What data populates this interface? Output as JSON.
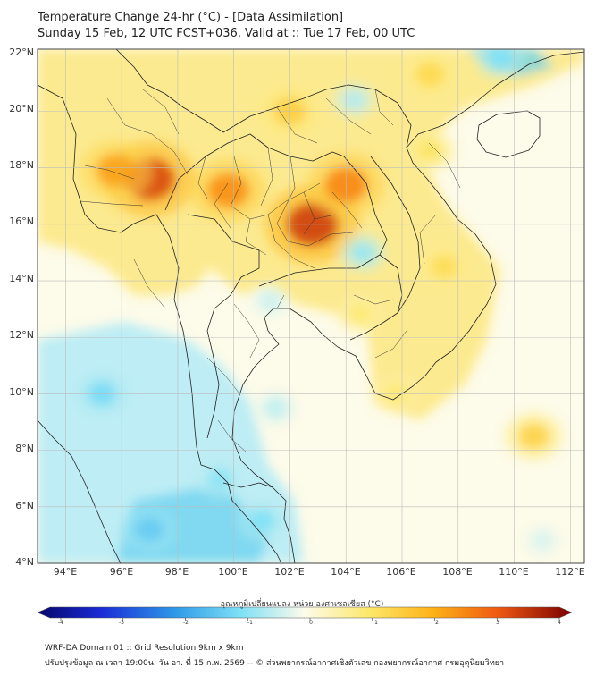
{
  "header": {
    "title_line1": "Temperature Change 24-hr (°C) - [Data Assimilation]",
    "title_line2": "Sunday 15 Feb, 12 UTC FCST+036, Valid at :: Tue 17 Feb, 00 UTC"
  },
  "map": {
    "lat_labels": [
      "22°N",
      "20°N",
      "18°N",
      "16°N",
      "14°N",
      "12°N",
      "10°N",
      "8°N",
      "6°N",
      "4°N"
    ],
    "lon_labels": [
      "94°E",
      "96°E",
      "98°E",
      "100°E",
      "102°E",
      "104°E",
      "106°E",
      "108°E",
      "110°E",
      "112°E"
    ],
    "lat_range": [
      4,
      22.2
    ],
    "lon_range": [
      93,
      112.5
    ],
    "anomalies": [
      {
        "name": "myanmar-warm-core",
        "lon": 97.0,
        "lat": 17.6,
        "value": 3.2
      },
      {
        "name": "myanmar-warm-west",
        "lon": 95.8,
        "lat": 17.9,
        "value": 2.2
      },
      {
        "name": "thai-north-warm",
        "lon": 99.8,
        "lat": 17.2,
        "value": 2.4
      },
      {
        "name": "isan-warm-core",
        "lon": 102.8,
        "lat": 16.0,
        "value": 3.3
      },
      {
        "name": "laos-warm",
        "lon": 104.0,
        "lat": 17.4,
        "value": 2.5
      },
      {
        "name": "north-vietnam-warm",
        "lon": 102.0,
        "lat": 20.0,
        "value": 1.5
      },
      {
        "name": "south-china-warm",
        "lon": 107.0,
        "lat": 21.3,
        "value": 1.3
      },
      {
        "name": "vietnam-coast-warm",
        "lon": 107.5,
        "lat": 14.5,
        "value": 1.2
      },
      {
        "name": "gulf-tonkin-warm",
        "lon": 107.0,
        "lat": 18.6,
        "value": 1.1
      },
      {
        "name": "sea-warm-spot",
        "lon": 110.7,
        "lat": 8.5,
        "value": 1.4
      },
      {
        "name": "mekong-delta-warm",
        "lon": 105.8,
        "lat": 10.0,
        "value": 0.9
      },
      {
        "name": "cambodia-warm",
        "lon": 104.5,
        "lat": 12.8,
        "value": 0.9
      },
      {
        "name": "andaman-cool",
        "lon": 95.3,
        "lat": 10.0,
        "value": -1.1
      },
      {
        "name": "malaya-cool",
        "lon": 99.5,
        "lat": 7.0,
        "value": -0.9
      },
      {
        "name": "sumatra-cool",
        "lon": 97.0,
        "lat": 5.2,
        "value": -1.3
      },
      {
        "name": "malay-coast-cool",
        "lon": 101.0,
        "lat": 5.5,
        "value": -1.0
      },
      {
        "name": "gulf-thailand-cool",
        "lon": 101.5,
        "lat": 9.5,
        "value": -0.5
      },
      {
        "name": "korat-cool",
        "lon": 104.6,
        "lat": 15.0,
        "value": -0.8
      },
      {
        "name": "chao-phraya-cool",
        "lon": 101.3,
        "lat": 13.3,
        "value": -0.4
      },
      {
        "name": "ne-corner-cool",
        "lon": 109.5,
        "lat": 21.9,
        "value": -1.0
      },
      {
        "name": "hainan-strait-cool",
        "lon": 104.3,
        "lat": 20.4,
        "value": -0.6
      },
      {
        "name": "south-sea-cool",
        "lon": 111.0,
        "lat": 4.8,
        "value": -0.3
      }
    ]
  },
  "colorbar": {
    "label": "อุณหภูมิเปลี่ยนแปลง หน่วย องศาเซลเซียส (°C)",
    "ticks": [
      "-4",
      "-3",
      "-2",
      "-1",
      "0",
      "1",
      "2",
      "3",
      "4"
    ],
    "range": [
      -4,
      4
    ]
  },
  "footer": {
    "line1": "WRF-DA Domain 01 :: Grid Resolution 9km x 9km",
    "line2": "ปรับปรุงข้อมูล ณ เวลา 19:00น. วัน อา. ที่ 15 ก.พ. 2569 -- © ส่วนพยากรณ์อากาศเชิงตัวเลข กองพยากรณ์อากาศ กรมอุตุนิยมวิทยา"
  },
  "colors": {
    "ocean_background": "#fdfbe9",
    "boundary": "#222222",
    "grid": "#bcbcbc"
  }
}
